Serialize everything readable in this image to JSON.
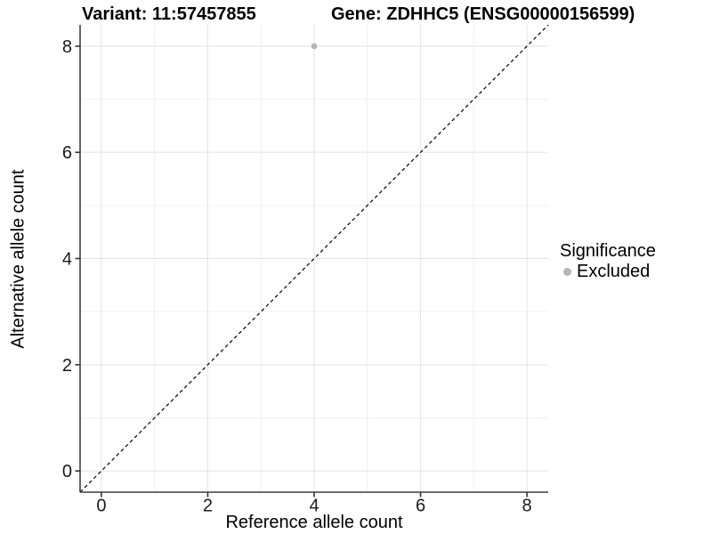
{
  "chart_data": {
    "type": "scatter",
    "title_variant": "Variant: 11:57457855",
    "title_gene": "Gene: ZDHHC5 (ENSG00000156599)",
    "xlabel": "Reference allele count",
    "ylabel": "Alternative allele count",
    "xlim": [
      -0.4,
      8.4
    ],
    "ylim": [
      -0.4,
      8.4
    ],
    "xticks": [
      0,
      2,
      4,
      6,
      8
    ],
    "yticks": [
      0,
      2,
      4,
      6,
      8
    ],
    "xminor": [
      1,
      3,
      5,
      7
    ],
    "yminor": [
      1,
      3,
      5,
      7
    ],
    "grid": "major+minor",
    "points": [
      {
        "x": 4,
        "y": 8,
        "series": "Excluded"
      }
    ],
    "reference_line": {
      "type": "identity",
      "style": "dashed",
      "from": [
        -0.4,
        -0.4
      ],
      "to": [
        8.4,
        8.4
      ]
    },
    "legend": {
      "title": "Significance",
      "position": "right",
      "items": [
        {
          "label": "Excluded",
          "color": "#b5b5b5"
        }
      ]
    }
  },
  "colors": {
    "background": "#ffffff",
    "point": "#b5b5b5",
    "grid_major": "#e3e3e3",
    "grid_minor": "#f0f0f0",
    "axis_line": "#3f3f3f",
    "tick_mark": "#333333",
    "tick_text": "#1a1a1a",
    "dashed_line": "#000000"
  }
}
